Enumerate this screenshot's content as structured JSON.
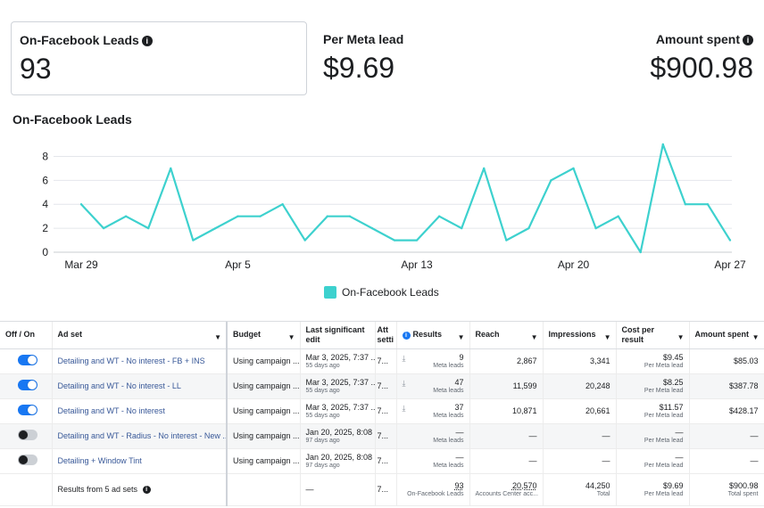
{
  "stats": [
    {
      "label": "On-Facebook Leads",
      "value": "93",
      "info": true
    },
    {
      "label": "Per Meta lead",
      "value": "$9.69",
      "info": false
    },
    {
      "label": "Amount spent",
      "value": "$900.98",
      "info": true
    }
  ],
  "chart_title": "On-Facebook Leads",
  "legend_label": "On-Facebook Leads",
  "chart_data": {
    "type": "line",
    "title": "On-Facebook Leads",
    "x_ticks": [
      "Mar 29",
      "Apr 5",
      "Apr 13",
      "Apr 20",
      "Apr 27"
    ],
    "y_ticks": [
      "0",
      "2",
      "4",
      "6",
      "8"
    ],
    "ylim": [
      0,
      9
    ],
    "grid": true,
    "legend_position": "bottom",
    "color": "#3dd1ce",
    "series": [
      {
        "name": "On-Facebook Leads",
        "values": [
          4,
          2,
          3,
          2,
          7,
          1,
          2,
          3,
          3,
          4,
          1,
          3,
          3,
          2,
          1,
          1,
          3,
          2,
          7,
          1,
          2,
          6,
          7,
          2,
          3,
          0,
          9,
          4,
          4,
          1
        ]
      }
    ]
  },
  "table": {
    "headers": {
      "off_on": "Off / On",
      "ad_set": "Ad set",
      "budget": "Budget",
      "last_edit": "Last significant edit",
      "att": "Att setti",
      "results": "Results",
      "reach": "Reach",
      "impressions": "Impressions",
      "cost": "Cost per result",
      "spent": "Amount spent"
    },
    "rows": [
      {
        "on": true,
        "name": "Detailing and WT - No interest - FB + INS",
        "budget": "Using campaign ...",
        "edit": "Mar 3, 2025, 7:37 ...",
        "edit_sub": "55 days ago",
        "att": "7...",
        "results": "9",
        "results_sub": "Meta leads",
        "reach": "2,867",
        "impressions": "3,341",
        "cost": "$9.45",
        "cost_sub": "Per Meta lead",
        "spent": "$85.03"
      },
      {
        "on": true,
        "name": "Detailing and WT - No interest - LL",
        "budget": "Using campaign ...",
        "edit": "Mar 3, 2025, 7:37 ...",
        "edit_sub": "55 days ago",
        "att": "7...",
        "results": "47",
        "results_sub": "Meta leads",
        "reach": "11,599",
        "impressions": "20,248",
        "cost": "$8.25",
        "cost_sub": "Per Meta lead",
        "spent": "$387.78"
      },
      {
        "on": true,
        "name": "Detailing and WT - No interest",
        "budget": "Using campaign ...",
        "edit": "Mar 3, 2025, 7:37 ...",
        "edit_sub": "55 days ago",
        "att": "7...",
        "results": "37",
        "results_sub": "Meta leads",
        "reach": "10,871",
        "impressions": "20,661",
        "cost": "$11.57",
        "cost_sub": "Per Meta lead",
        "spent": "$428.17"
      },
      {
        "on": false,
        "name": "Detailing and WT - Radius - No interest - New ...",
        "budget": "Using campaign ...",
        "edit": "Jan 20, 2025, 8:08 ...",
        "edit_sub": "97 days ago",
        "att": "7...",
        "results": "—",
        "results_sub": "Meta leads",
        "reach": "—",
        "impressions": "—",
        "cost": "—",
        "cost_sub": "Per Meta lead",
        "spent": "—"
      },
      {
        "on": false,
        "name": "Detailing + Window Tint",
        "budget": "Using campaign ...",
        "edit": "Jan 20, 2025, 8:08 ...",
        "edit_sub": "97 days ago",
        "att": "7...",
        "results": "—",
        "results_sub": "Meta leads",
        "reach": "—",
        "impressions": "—",
        "cost": "—",
        "cost_sub": "Per Meta lead",
        "spent": "—"
      }
    ],
    "summary": {
      "label": "Results from 5 ad sets",
      "edit": "—",
      "att": "7...",
      "results": "93",
      "results_sub": "On-Facebook Leads",
      "reach": "20,570",
      "reach_sub": "Accounts Center acc...",
      "impressions": "44,250",
      "impressions_sub": "Total",
      "cost": "$9.69",
      "cost_sub": "Per Meta lead",
      "spent": "$900.98",
      "spent_sub": "Total spent"
    }
  }
}
